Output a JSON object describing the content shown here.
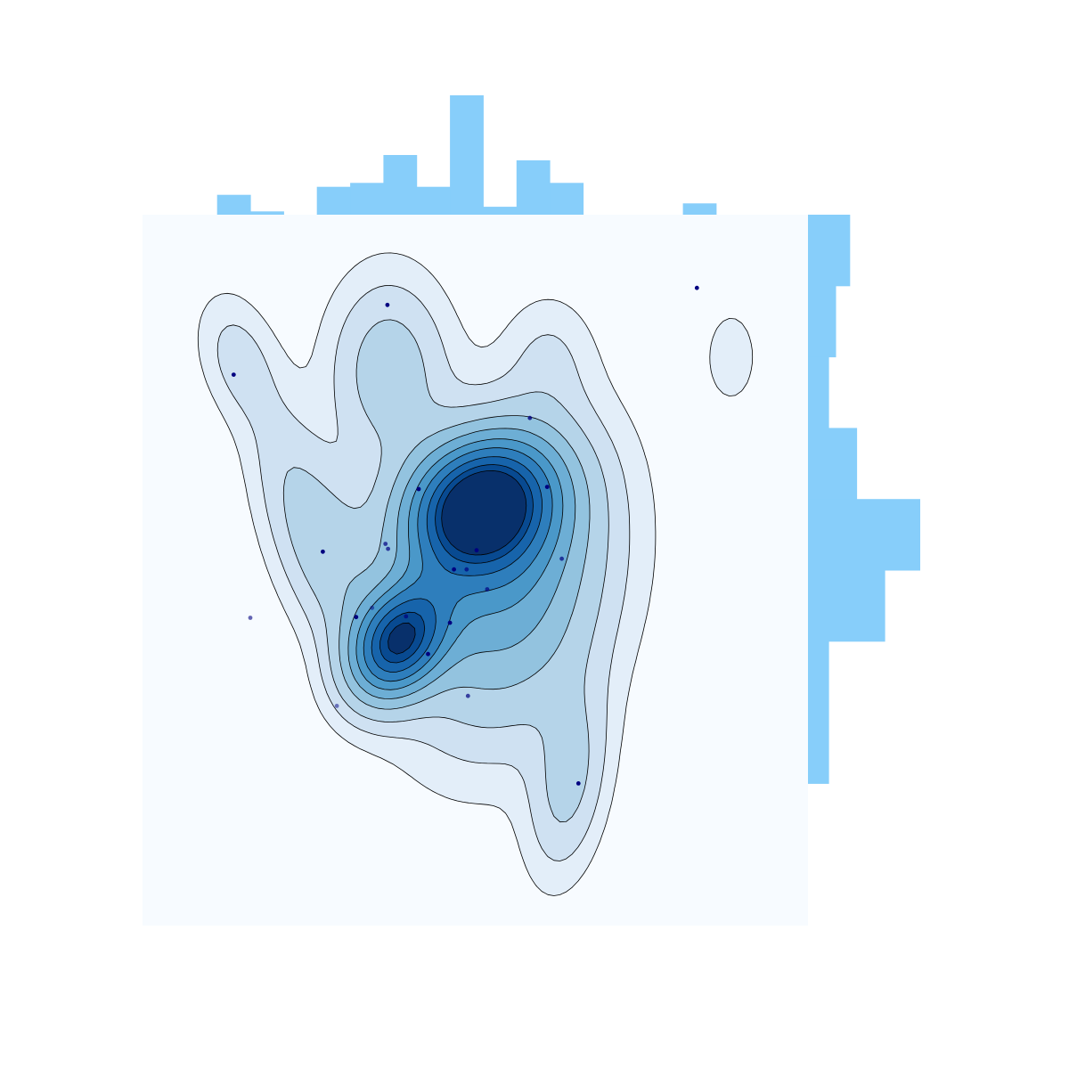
{
  "chart_data": {
    "type": "kde-contour-joint",
    "title": "",
    "xlabel": "",
    "ylabel": "",
    "axes_visible": false,
    "grid": false,
    "colors": {
      "background": "#f7fbff",
      "histogram": "#87cefa",
      "points": "#000080",
      "contour_lines": "#000000",
      "levels": [
        "#e3eef9",
        "#cfe1f2",
        "#b5d4e9",
        "#93c3df",
        "#6daed5",
        "#4a98c9",
        "#2e7ebc",
        "#1764ab",
        "#084a91",
        "#08306b"
      ]
    },
    "xlim": [
      0,
      100
    ],
    "ylim": [
      0,
      100
    ],
    "points": [
      {
        "x": 13.7,
        "y": 77.5,
        "alpha": 1
      },
      {
        "x": 36.8,
        "y": 87.3,
        "alpha": 1
      },
      {
        "x": 83.3,
        "y": 89.7,
        "alpha": 1
      },
      {
        "x": 58.2,
        "y": 71.4,
        "alpha": 0.8
      },
      {
        "x": 41.5,
        "y": 61.4,
        "alpha": 1
      },
      {
        "x": 60.8,
        "y": 61.7,
        "alpha": 1
      },
      {
        "x": 27.1,
        "y": 52.6,
        "alpha": 1
      },
      {
        "x": 36.5,
        "y": 53.7,
        "alpha": 0.7
      },
      {
        "x": 36.9,
        "y": 53.0,
        "alpha": 0.7
      },
      {
        "x": 50.2,
        "y": 52.8,
        "alpha": 1
      },
      {
        "x": 63.0,
        "y": 51.6,
        "alpha": 0.7
      },
      {
        "x": 46.8,
        "y": 50.1,
        "alpha": 1
      },
      {
        "x": 48.7,
        "y": 50.1,
        "alpha": 0.7
      },
      {
        "x": 51.8,
        "y": 47.3,
        "alpha": 0.7
      },
      {
        "x": 16.2,
        "y": 43.3,
        "alpha": 0.6
      },
      {
        "x": 32.1,
        "y": 43.4,
        "alpha": 1
      },
      {
        "x": 39.6,
        "y": 43.5,
        "alpha": 0.7
      },
      {
        "x": 34.5,
        "y": 44.7,
        "alpha": 0.5
      },
      {
        "x": 46.2,
        "y": 42.6,
        "alpha": 1
      },
      {
        "x": 42.9,
        "y": 38.2,
        "alpha": 1
      },
      {
        "x": 48.9,
        "y": 32.3,
        "alpha": 0.7
      },
      {
        "x": 29.2,
        "y": 30.9,
        "alpha": 0.5
      },
      {
        "x": 65.5,
        "y": 20.0,
        "alpha": 1
      }
    ],
    "density_modes": [
      {
        "x": 50.5,
        "y": 59.0,
        "sx": 7.5,
        "sy": 6.5,
        "rho": 0.2,
        "weight": 1.0
      },
      {
        "x": 38.5,
        "y": 40.0,
        "sx": 5.0,
        "sy": 5.5,
        "rho": 0.3,
        "weight": 0.85
      },
      {
        "x": 55.0,
        "y": 48.0,
        "sx": 10.0,
        "sy": 14.0,
        "rho": 0.2,
        "weight": 0.45
      },
      {
        "x": 37.0,
        "y": 78.0,
        "sx": 6.0,
        "sy": 9.0,
        "rho": 0.0,
        "weight": 0.22
      },
      {
        "x": 28.0,
        "y": 52.0,
        "sx": 6.0,
        "sy": 10.0,
        "rho": -0.5,
        "weight": 0.2
      },
      {
        "x": 64.0,
        "y": 20.0,
        "sx": 4.0,
        "sy": 9.0,
        "rho": 0.3,
        "weight": 0.18
      },
      {
        "x": 14.0,
        "y": 80.0,
        "sx": 4.0,
        "sy": 6.0,
        "rho": -0.3,
        "weight": 0.1
      },
      {
        "x": 21.0,
        "y": 66.0,
        "sx": 5.0,
        "sy": 11.0,
        "rho": -0.6,
        "weight": 0.07
      },
      {
        "x": 61.0,
        "y": 80.0,
        "sx": 4.5,
        "sy": 6.0,
        "rho": 0.0,
        "weight": 0.08
      },
      {
        "x": 88.5,
        "y": 80.0,
        "sx": 3.5,
        "sy": 6.0,
        "rho": 0.0,
        "weight": 0.06
      }
    ],
    "density_levels": [
      0.04,
      0.09,
      0.16,
      0.26,
      0.37,
      0.49,
      0.61,
      0.74,
      0.86,
      0.95
    ],
    "top_histogram": {
      "bins": [
        {
          "start": 11.2,
          "end": 16.2,
          "count": 3
        },
        {
          "start": 16.2,
          "end": 21.2,
          "count": 0.5
        },
        {
          "start": 26.2,
          "end": 31.2,
          "count": 4.2
        },
        {
          "start": 31.2,
          "end": 36.2,
          "count": 4.8
        },
        {
          "start": 36.2,
          "end": 41.2,
          "count": 9
        },
        {
          "start": 41.2,
          "end": 46.2,
          "count": 4.2
        },
        {
          "start": 46.2,
          "end": 51.2,
          "count": 18
        },
        {
          "start": 51.2,
          "end": 56.2,
          "count": 1.2
        },
        {
          "start": 56.2,
          "end": 61.2,
          "count": 8.2
        },
        {
          "start": 61.2,
          "end": 66.2,
          "count": 4.8
        },
        {
          "start": 81.2,
          "end": 86.2,
          "count": 1.7
        }
      ],
      "max": 18
    },
    "right_histogram": {
      "bins": [
        {
          "start": 90.0,
          "end": 100.0,
          "count": 6
        },
        {
          "start": 80.0,
          "end": 90.0,
          "count": 4
        },
        {
          "start": 70.0,
          "end": 80.0,
          "count": 3
        },
        {
          "start": 60.0,
          "end": 70.0,
          "count": 7
        },
        {
          "start": 50.0,
          "end": 60.0,
          "count": 16
        },
        {
          "start": 40.0,
          "end": 50.0,
          "count": 11
        },
        {
          "start": 20.0,
          "end": 40.0,
          "count": 3
        }
      ],
      "max": 16
    }
  }
}
